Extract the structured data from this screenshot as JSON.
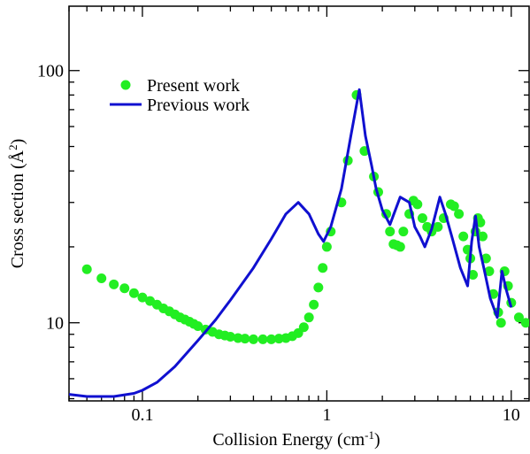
{
  "chart_data": {
    "type": "scatter",
    "title": "",
    "xlabel": "Collision Energy (cm",
    "xlabel_sup": "-1",
    "xlabel_end": ")",
    "ylabel": "Cross section (",
    "ylabel_unit": "Å",
    "ylabel_sup": "2",
    "ylabel_end": ")",
    "xscale": "log",
    "yscale": "log",
    "xlim": [
      0.04,
      12.5
    ],
    "ylim": [
      4.9,
      180
    ],
    "grid": false,
    "legend_position": "top-left",
    "x_ticks": [
      {
        "value": 0.1,
        "label": "0.1"
      },
      {
        "value": 1,
        "label": "1"
      },
      {
        "value": 10,
        "label": "10"
      }
    ],
    "y_ticks": [
      {
        "value": 10,
        "label": "10"
      },
      {
        "value": 100,
        "label": "100"
      }
    ],
    "series": [
      {
        "name": "Present work",
        "kind": "scatter",
        "color": "#22ee22",
        "points": [
          [
            0.05,
            16.3
          ],
          [
            0.06,
            15.0
          ],
          [
            0.07,
            14.2
          ],
          [
            0.08,
            13.7
          ],
          [
            0.09,
            13.1
          ],
          [
            0.1,
            12.6
          ],
          [
            0.11,
            12.2
          ],
          [
            0.12,
            11.8
          ],
          [
            0.13,
            11.4
          ],
          [
            0.14,
            11.1
          ],
          [
            0.15,
            10.8
          ],
          [
            0.16,
            10.5
          ],
          [
            0.17,
            10.3
          ],
          [
            0.18,
            10.1
          ],
          [
            0.19,
            9.9
          ],
          [
            0.2,
            9.7
          ],
          [
            0.22,
            9.4
          ],
          [
            0.24,
            9.2
          ],
          [
            0.26,
            9.0
          ],
          [
            0.28,
            8.9
          ],
          [
            0.3,
            8.8
          ],
          [
            0.33,
            8.7
          ],
          [
            0.36,
            8.65
          ],
          [
            0.4,
            8.6
          ],
          [
            0.45,
            8.6
          ],
          [
            0.5,
            8.6
          ],
          [
            0.55,
            8.65
          ],
          [
            0.6,
            8.7
          ],
          [
            0.65,
            8.85
          ],
          [
            0.7,
            9.1
          ],
          [
            0.75,
            9.6
          ],
          [
            0.8,
            10.5
          ],
          [
            0.85,
            11.8
          ],
          [
            0.9,
            13.8
          ],
          [
            0.95,
            16.5
          ],
          [
            1.0,
            20.0
          ],
          [
            1.05,
            23.0
          ],
          [
            1.2,
            30.0
          ],
          [
            1.3,
            44.0
          ],
          [
            1.45,
            80.0
          ],
          [
            1.6,
            48.0
          ],
          [
            1.8,
            38.0
          ],
          [
            1.9,
            33.0
          ],
          [
            2.1,
            27.0
          ],
          [
            2.2,
            23.0
          ],
          [
            2.3,
            20.5
          ],
          [
            2.4,
            20.3
          ],
          [
            2.5,
            20.0
          ],
          [
            2.6,
            23.0
          ],
          [
            2.8,
            27.0
          ],
          [
            2.95,
            30.5
          ],
          [
            3.1,
            29.5
          ],
          [
            3.3,
            26.0
          ],
          [
            3.5,
            24.0
          ],
          [
            3.7,
            23.0
          ],
          [
            4.0,
            24.0
          ],
          [
            4.3,
            26.0
          ],
          [
            4.7,
            29.5
          ],
          [
            4.9,
            29.0
          ],
          [
            5.2,
            27.0
          ],
          [
            5.5,
            22.0
          ],
          [
            5.8,
            19.5
          ],
          [
            6.0,
            18.0
          ],
          [
            6.2,
            15.5
          ],
          [
            6.4,
            23.0
          ],
          [
            6.6,
            26.0
          ],
          [
            6.8,
            25.0
          ],
          [
            7.0,
            22.0
          ],
          [
            7.3,
            18.0
          ],
          [
            7.6,
            16.0
          ],
          [
            8.0,
            13.0
          ],
          [
            8.5,
            11.0
          ],
          [
            8.8,
            10.0
          ],
          [
            9.2,
            16.0
          ],
          [
            9.6,
            14.0
          ],
          [
            10.0,
            12.0
          ],
          [
            11.0,
            10.5
          ],
          [
            12.0,
            10.0
          ]
        ]
      },
      {
        "name": "Previous work",
        "kind": "line",
        "color": "#1010d0",
        "points": [
          [
            0.04,
            5.2
          ],
          [
            0.05,
            5.1
          ],
          [
            0.07,
            5.1
          ],
          [
            0.09,
            5.25
          ],
          [
            0.1,
            5.4
          ],
          [
            0.12,
            5.8
          ],
          [
            0.15,
            6.7
          ],
          [
            0.2,
            8.5
          ],
          [
            0.25,
            10.3
          ],
          [
            0.3,
            12.3
          ],
          [
            0.4,
            16.5
          ],
          [
            0.5,
            21.5
          ],
          [
            0.6,
            27.0
          ],
          [
            0.7,
            30.0
          ],
          [
            0.8,
            27.0
          ],
          [
            0.9,
            22.5
          ],
          [
            0.96,
            21.0
          ],
          [
            1.05,
            24.0
          ],
          [
            1.2,
            34.0
          ],
          [
            1.35,
            55.0
          ],
          [
            1.5,
            84.0
          ],
          [
            1.62,
            55.0
          ],
          [
            1.75,
            42.0
          ],
          [
            1.85,
            34.0
          ],
          [
            2.0,
            28.0
          ],
          [
            2.2,
            24.5
          ],
          [
            2.5,
            31.5
          ],
          [
            2.8,
            30.0
          ],
          [
            3.0,
            24.0
          ],
          [
            3.2,
            22.0
          ],
          [
            3.4,
            20.0
          ],
          [
            3.7,
            23.5
          ],
          [
            4.1,
            31.5
          ],
          [
            4.4,
            27.0
          ],
          [
            4.8,
            21.5
          ],
          [
            5.3,
            16.5
          ],
          [
            5.8,
            14.0
          ],
          [
            6.1,
            21.0
          ],
          [
            6.4,
            26.5
          ],
          [
            6.7,
            20.0
          ],
          [
            7.1,
            16.5
          ],
          [
            7.7,
            12.5
          ],
          [
            8.4,
            10.5
          ],
          [
            8.9,
            16.0
          ],
          [
            9.4,
            13.5
          ],
          [
            10.0,
            11.5
          ]
        ]
      }
    ],
    "legend": [
      {
        "label": "Present work",
        "marker": "circle",
        "color": "#22ee22"
      },
      {
        "label": "Previous work",
        "marker": "line",
        "color": "#1010d0"
      }
    ]
  }
}
